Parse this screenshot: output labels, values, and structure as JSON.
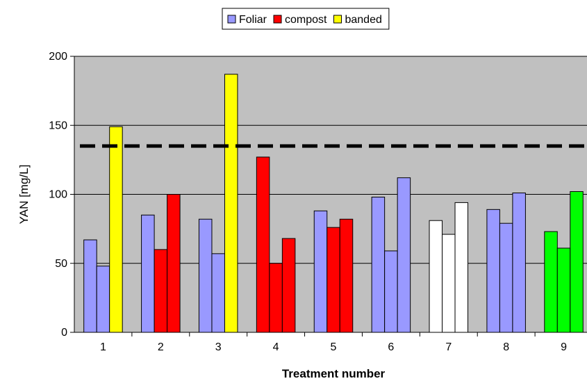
{
  "chart_data": {
    "type": "bar",
    "title": "",
    "xlabel": "Treatment number",
    "ylabel": "YAN [mg/L]",
    "ylim": [
      0,
      200
    ],
    "yticks": [
      0,
      50,
      100,
      150,
      200
    ],
    "grid": true,
    "plot_background": "#c0c0c0",
    "legend": {
      "placement": "top-center",
      "entries": [
        {
          "label": "Foliar",
          "color": "#9999ff"
        },
        {
          "label": "compost",
          "color": "#ff0000"
        },
        {
          "label": "banded",
          "color": "#ffff00"
        }
      ]
    },
    "reference_line": {
      "value": 135,
      "style": "dashed",
      "color": "#000000"
    },
    "categories": [
      "1",
      "2",
      "3",
      "4",
      "5",
      "6",
      "7",
      "8",
      "9"
    ],
    "groups": [
      {
        "category": "1",
        "bars": [
          {
            "value": 67,
            "color": "#9999ff"
          },
          {
            "value": 48,
            "color": "#9999ff"
          },
          {
            "value": 149,
            "color": "#ffff00"
          }
        ]
      },
      {
        "category": "2",
        "bars": [
          {
            "value": 85,
            "color": "#9999ff"
          },
          {
            "value": 60,
            "color": "#ff0000"
          },
          {
            "value": 100,
            "color": "#ff0000"
          }
        ]
      },
      {
        "category": "3",
        "bars": [
          {
            "value": 82,
            "color": "#9999ff"
          },
          {
            "value": 57,
            "color": "#9999ff"
          },
          {
            "value": 187,
            "color": "#ffff00"
          }
        ]
      },
      {
        "category": "4",
        "bars": [
          {
            "value": 127,
            "color": "#ff0000"
          },
          {
            "value": 50,
            "color": "#ff0000"
          },
          {
            "value": 68,
            "color": "#ff0000"
          }
        ]
      },
      {
        "category": "5",
        "bars": [
          {
            "value": 88,
            "color": "#9999ff"
          },
          {
            "value": 76,
            "color": "#ff0000"
          },
          {
            "value": 82,
            "color": "#ff0000"
          }
        ]
      },
      {
        "category": "6",
        "bars": [
          {
            "value": 98,
            "color": "#9999ff"
          },
          {
            "value": 59,
            "color": "#9999ff"
          },
          {
            "value": 112,
            "color": "#9999ff"
          }
        ]
      },
      {
        "category": "7",
        "bars": [
          {
            "value": 81,
            "color": "#ffffff"
          },
          {
            "value": 71,
            "color": "#ffffff"
          },
          {
            "value": 94,
            "color": "#ffffff"
          }
        ]
      },
      {
        "category": "8",
        "bars": [
          {
            "value": 89,
            "color": "#9999ff"
          },
          {
            "value": 79,
            "color": "#9999ff"
          },
          {
            "value": 101,
            "color": "#9999ff"
          }
        ]
      },
      {
        "category": "9",
        "bars": [
          {
            "value": 73,
            "color": "#00ff00"
          },
          {
            "value": 61,
            "color": "#00ff00"
          },
          {
            "value": 102,
            "color": "#00ff00"
          }
        ]
      }
    ]
  }
}
